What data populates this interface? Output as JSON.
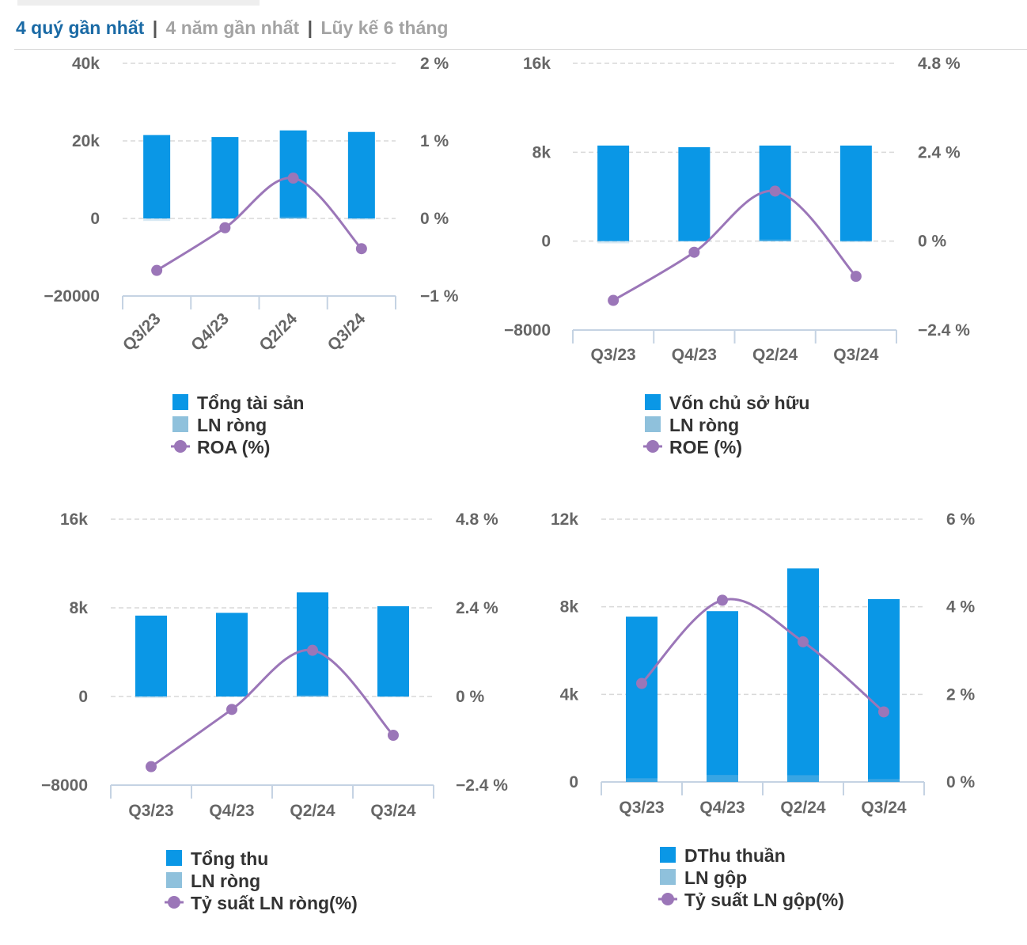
{
  "tabs": {
    "active": "4 quý gần nhất",
    "sep1": "|",
    "years": "4 năm gần nhất",
    "sep2": "|",
    "cumulative": "Lũy kế 6 tháng"
  },
  "colors": {
    "bar": "#0a97e6",
    "bar_light": "#8fc1dc",
    "line": "#9b76b8",
    "accent": "#1a6aa5"
  },
  "chart_data": [
    {
      "type": "bar",
      "categories": [
        "Q3/23",
        "Q4/23",
        "Q2/24",
        "Q3/24"
      ],
      "series": [
        {
          "name": "Tổng tài sản",
          "kind": "bar",
          "axis": "left",
          "values": [
            21500,
            21000,
            22700,
            22300
          ]
        },
        {
          "name": "LN ròng",
          "kind": "bar",
          "axis": "left",
          "values": [
            -650,
            -150,
            450,
            -350
          ]
        },
        {
          "name": "ROA (%)",
          "kind": "line",
          "axis": "right",
          "values": [
            -0.67,
            -0.12,
            0.52,
            -0.39
          ]
        }
      ],
      "left_ticks": [
        "40k",
        "20k",
        "0",
        "−20000"
      ],
      "right_ticks": [
        "2 %",
        "1 %",
        "0 %",
        "−1 %"
      ],
      "ylim_left": [
        -20000,
        40000
      ],
      "ylim_right": [
        -1,
        2
      ],
      "x_labels_rotated": true,
      "grid": true,
      "legend": "bottom"
    },
    {
      "type": "bar",
      "categories": [
        "Q3/23",
        "Q4/23",
        "Q2/24",
        "Q3/24"
      ],
      "series": [
        {
          "name": "Vốn chủ sở hữu",
          "kind": "bar",
          "axis": "left",
          "values": [
            8600,
            8450,
            8600,
            8600
          ]
        },
        {
          "name": "LN ròng",
          "kind": "bar",
          "axis": "left",
          "values": [
            -200,
            -50,
            150,
            -100
          ]
        },
        {
          "name": "ROE (%)",
          "kind": "line",
          "axis": "right",
          "values": [
            -1.6,
            -0.3,
            1.35,
            -0.95
          ]
        }
      ],
      "left_ticks": [
        "16k",
        "8k",
        "0",
        "−8000"
      ],
      "right_ticks": [
        "4.8 %",
        "2.4 %",
        "0 %",
        "−2.4 %"
      ],
      "ylim_left": [
        -8000,
        16000
      ],
      "ylim_right": [
        -2.4,
        4.8
      ],
      "x_labels_rotated": false,
      "grid": true,
      "legend": "bottom"
    },
    {
      "type": "bar",
      "categories": [
        "Q3/23",
        "Q4/23",
        "Q2/24",
        "Q3/24"
      ],
      "series": [
        {
          "name": "Tổng thu",
          "kind": "bar",
          "axis": "left",
          "values": [
            7300,
            7550,
            9400,
            8150
          ]
        },
        {
          "name": "LN ròng",
          "kind": "bar",
          "axis": "left",
          "values": [
            -150,
            -50,
            120,
            -80
          ]
        },
        {
          "name": "Tỷ suất LN ròng(%)",
          "kind": "line",
          "axis": "right",
          "values": [
            -1.9,
            -0.35,
            1.25,
            -1.05
          ]
        }
      ],
      "left_ticks": [
        "16k",
        "8k",
        "0",
        "−8000"
      ],
      "right_ticks": [
        "4.8 %",
        "2.4 %",
        "0 %",
        "−2.4 %"
      ],
      "ylim_left": [
        -8000,
        16000
      ],
      "ylim_right": [
        -2.4,
        4.8
      ],
      "x_labels_rotated": false,
      "grid": true,
      "legend": "bottom"
    },
    {
      "type": "bar",
      "categories": [
        "Q3/23",
        "Q4/23",
        "Q2/24",
        "Q3/24"
      ],
      "series": [
        {
          "name": "DThu thuần",
          "kind": "bar",
          "axis": "left",
          "values": [
            7550,
            7800,
            9750,
            8350
          ]
        },
        {
          "name": "LN gộp",
          "kind": "bar",
          "axis": "left",
          "values": [
            170,
            320,
            310,
            135
          ]
        },
        {
          "name": "Tỷ suất LN gộp(%)",
          "kind": "line",
          "axis": "right",
          "values": [
            2.25,
            4.15,
            3.2,
            1.6
          ]
        }
      ],
      "left_ticks": [
        "12k",
        "8k",
        "4k",
        "0"
      ],
      "right_ticks": [
        "6 %",
        "4 %",
        "2 %",
        "0 %"
      ],
      "ylim_left": [
        0,
        12000
      ],
      "ylim_right": [
        0,
        6
      ],
      "x_labels_rotated": false,
      "grid": true,
      "legend": "bottom"
    }
  ]
}
